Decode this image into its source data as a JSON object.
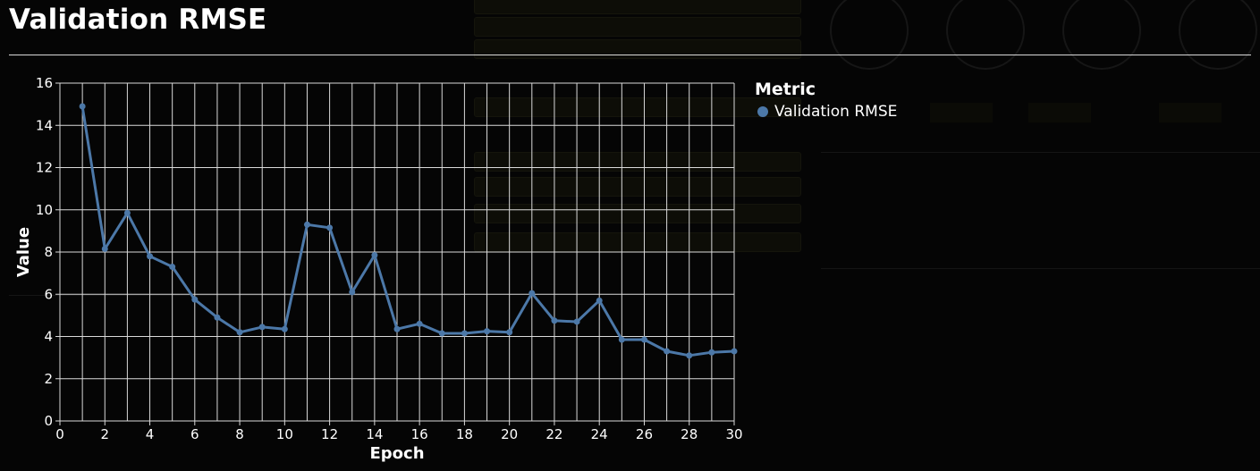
{
  "title": "Validation RMSE",
  "colors": {
    "series": "#4c78a8",
    "grid": "#d9d9d9",
    "background": "#050505",
    "text": "#ffffff"
  },
  "legend": {
    "title": "Metric",
    "placement": "right"
  },
  "chart_data": {
    "type": "line",
    "title": "Validation RMSE",
    "xlabel": "Epoch",
    "ylabel": "Value",
    "xlim": [
      0,
      30
    ],
    "ylim": [
      0,
      16
    ],
    "x_ticks": [
      0,
      2,
      4,
      6,
      8,
      10,
      12,
      14,
      16,
      18,
      20,
      22,
      24,
      26,
      28,
      30
    ],
    "y_ticks": [
      0,
      2,
      4,
      6,
      8,
      10,
      12,
      14,
      16
    ],
    "grid": true,
    "series": [
      {
        "name": "Validation RMSE",
        "x": [
          1,
          2,
          3,
          4,
          5,
          6,
          7,
          8,
          9,
          10,
          11,
          12,
          13,
          14,
          15,
          16,
          17,
          18,
          19,
          20,
          21,
          22,
          23,
          24,
          25,
          26,
          27,
          28,
          29,
          30
        ],
        "values": [
          14.9,
          8.15,
          9.85,
          7.8,
          7.3,
          5.75,
          4.9,
          4.2,
          4.45,
          4.35,
          9.3,
          9.15,
          6.1,
          7.85,
          4.35,
          4.6,
          4.15,
          4.15,
          4.25,
          4.2,
          6.05,
          4.75,
          4.7,
          5.7,
          3.85,
          3.85,
          3.3,
          3.1,
          3.25,
          3.3
        ]
      }
    ]
  }
}
